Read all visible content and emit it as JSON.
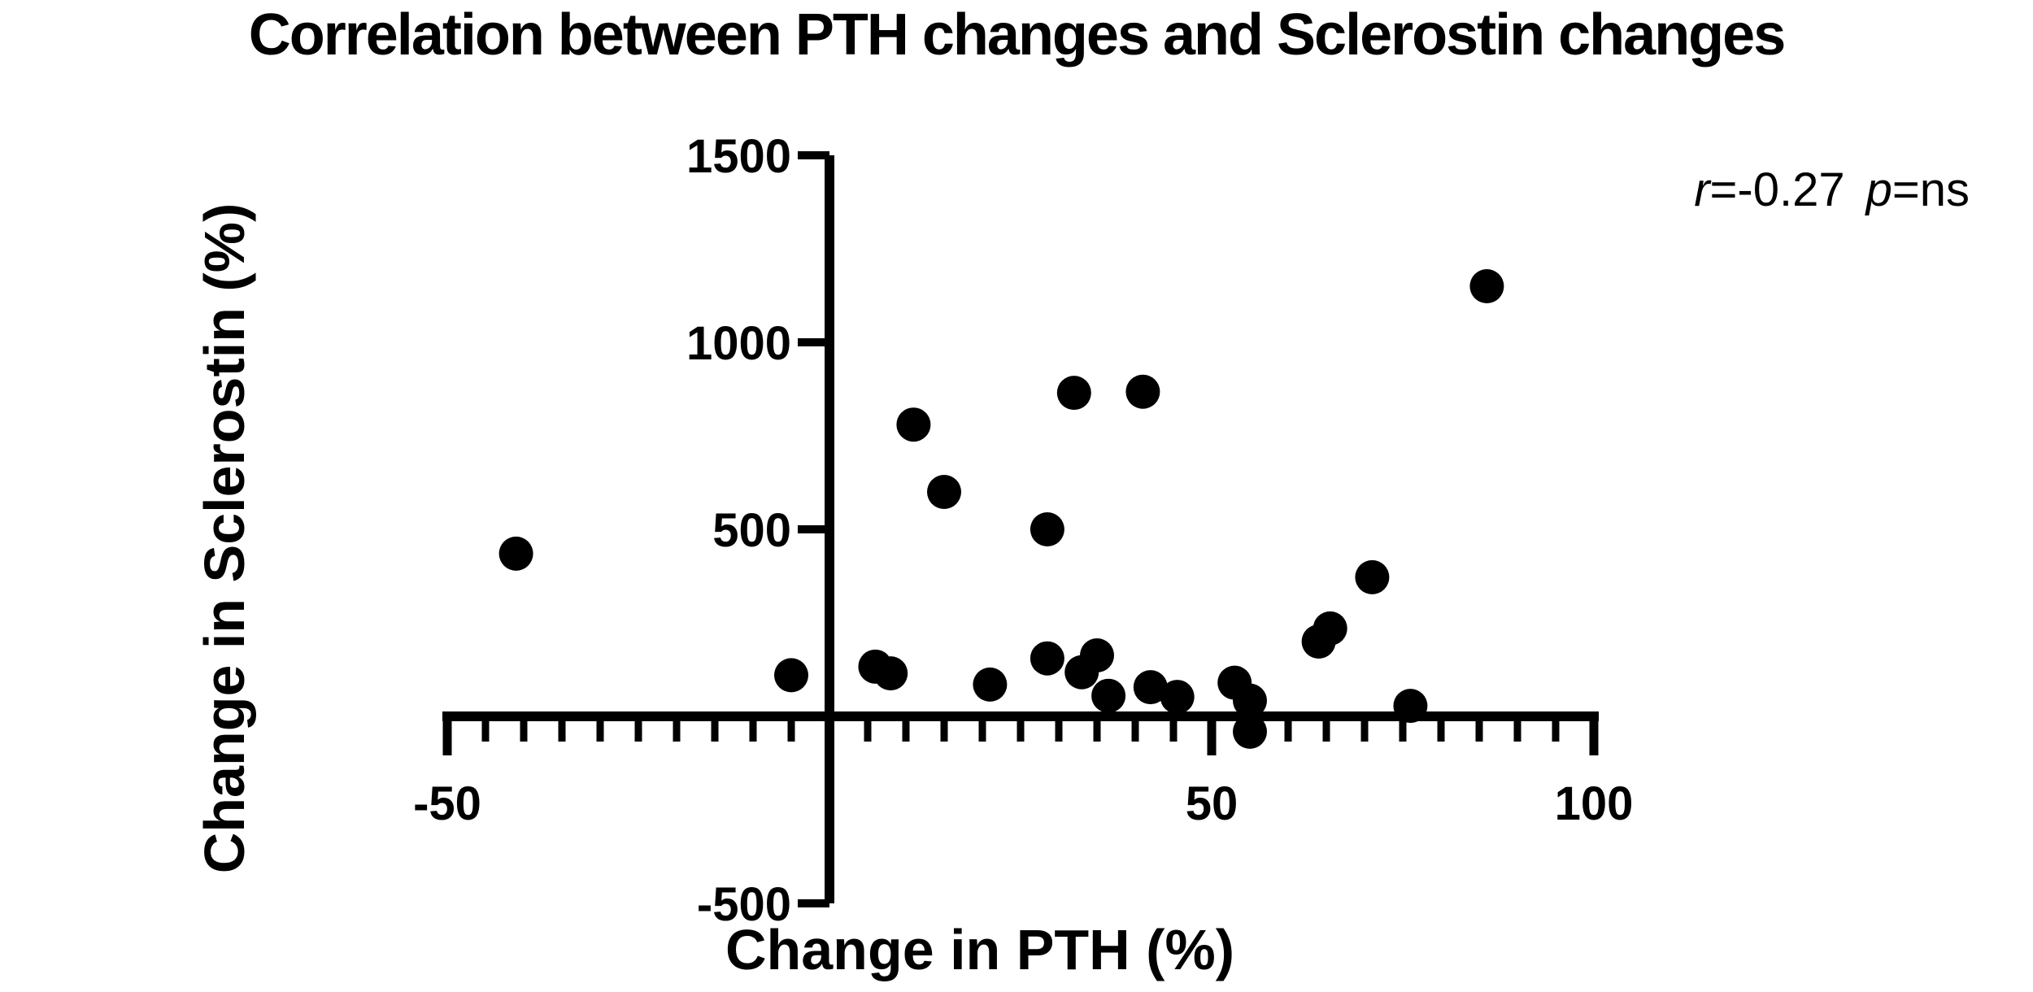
{
  "title": "Correlation between PTH changes and Sclerostin changes",
  "annotation": {
    "r_label": "r",
    "r_value": "=-0.27",
    "p_label": "p",
    "p_value": "=ns"
  },
  "colors": {
    "background": "#ffffff",
    "axis": "#000000",
    "point": "#000000",
    "text": "#000000"
  },
  "chart_data": {
    "type": "scatter",
    "title": "Correlation between PTH changes and Sclerostin changes",
    "xlabel": "Change in PTH (%)",
    "ylabel": "Change in Sclerostin (%)",
    "xlim": [
      -50,
      100
    ],
    "ylim": [
      -500,
      1500
    ],
    "x_ticks": [
      -50,
      50,
      100
    ],
    "x_tick_labels": [
      "-50",
      "50",
      "100"
    ],
    "x_minor_tick_step": 5,
    "y_ticks": [
      1500,
      1000,
      500,
      -500
    ],
    "y_tick_labels": [
      "1500",
      "1000",
      "500",
      "-500"
    ],
    "grid": false,
    "legend": "none",
    "annotation": "r=-0.27 p=ns",
    "points": [
      [
        -41,
        435
      ],
      [
        -5,
        110
      ],
      [
        6,
        133
      ],
      [
        8,
        115
      ],
      [
        11,
        780
      ],
      [
        15,
        600
      ],
      [
        21,
        85
      ],
      [
        28.5,
        500
      ],
      [
        28.5,
        155
      ],
      [
        32,
        865
      ],
      [
        33,
        118
      ],
      [
        35,
        163
      ],
      [
        36.5,
        55
      ],
      [
        41,
        868
      ],
      [
        42,
        78
      ],
      [
        45.5,
        52
      ],
      [
        53,
        90
      ],
      [
        55,
        42
      ],
      [
        55,
        -41
      ],
      [
        64,
        200
      ],
      [
        65.5,
        235
      ],
      [
        71,
        372
      ],
      [
        76,
        28
      ],
      [
        86,
        1150
      ]
    ]
  }
}
